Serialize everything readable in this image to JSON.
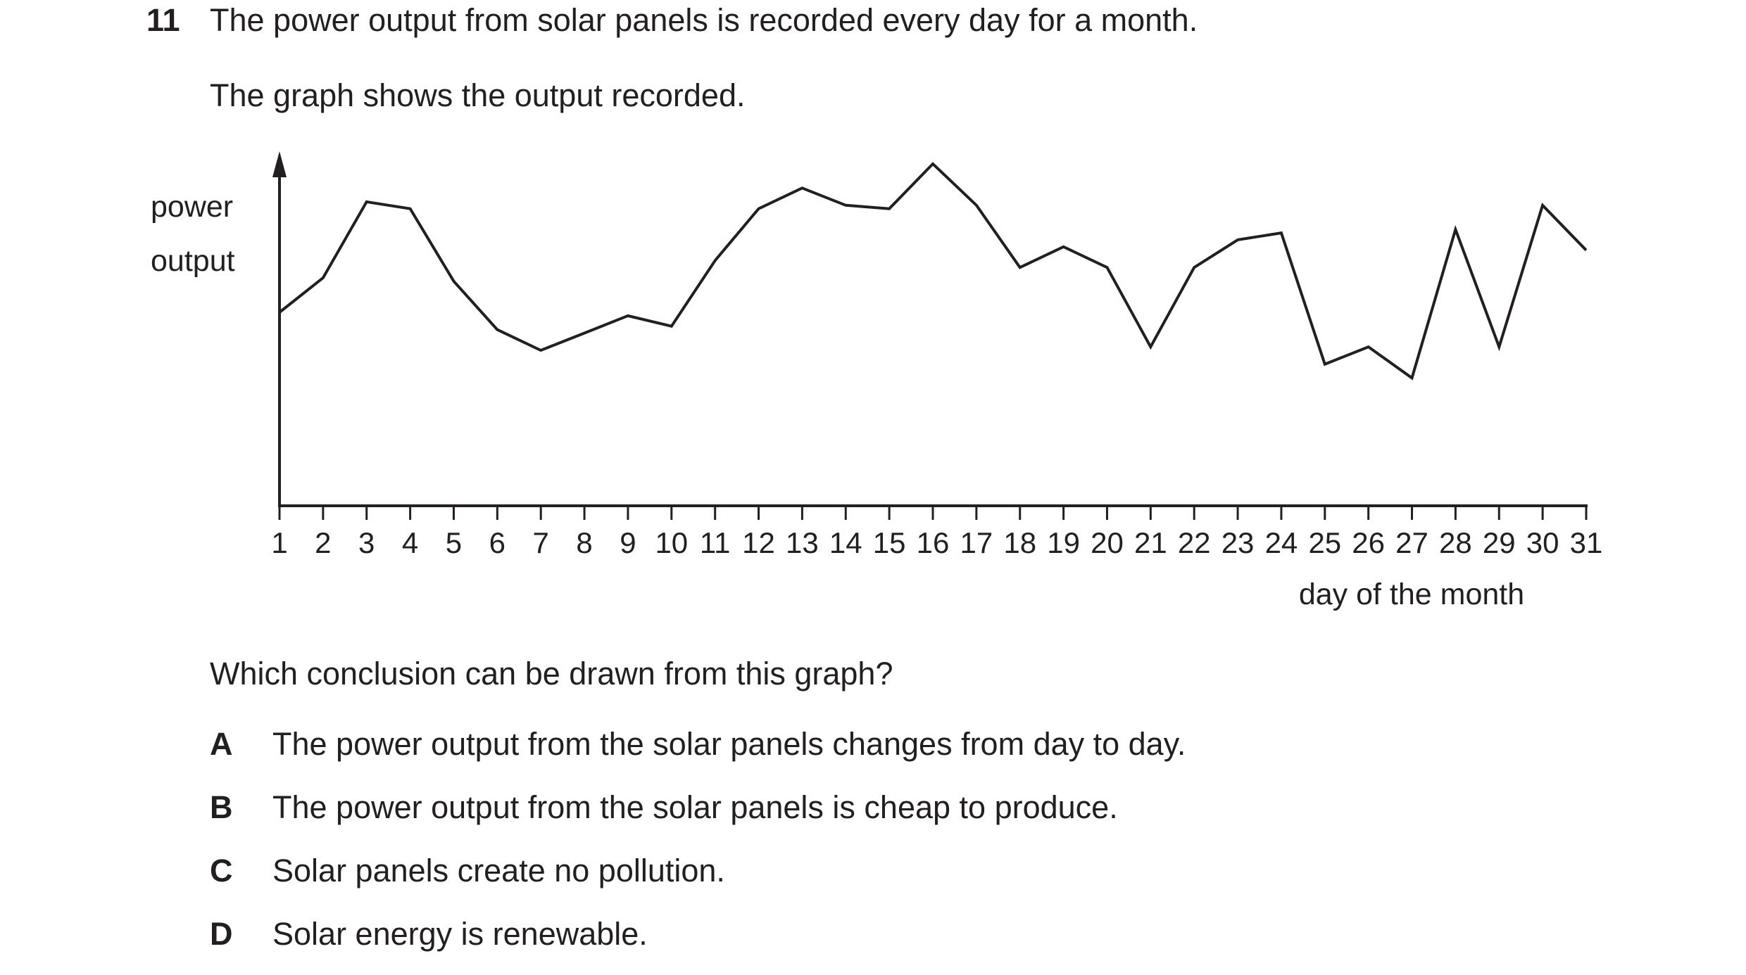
{
  "question": {
    "number": "11",
    "intro_line_1": "The power output from solar panels is recorded every day for a month.",
    "intro_line_2": "The graph shows the output recorded.",
    "prompt": "Which conclusion can be drawn from this graph?",
    "options": [
      {
        "letter": "A",
        "text": "The power output from the solar panels changes from day to day."
      },
      {
        "letter": "B",
        "text": "The power output from the solar panels is cheap to produce."
      },
      {
        "letter": "C",
        "text": "Solar panels create no pollution."
      },
      {
        "letter": "D",
        "text": "Solar energy is renewable."
      }
    ]
  },
  "chart_data": {
    "type": "line",
    "title": "",
    "ylabel_lines": [
      "power",
      "output"
    ],
    "xlabel": "day of the month",
    "y_axis_ticks": false,
    "grid": false,
    "ylim": [
      0,
      1
    ],
    "x": [
      1,
      2,
      3,
      4,
      5,
      6,
      7,
      8,
      9,
      10,
      11,
      12,
      13,
      14,
      15,
      16,
      17,
      18,
      19,
      20,
      21,
      22,
      23,
      24,
      25,
      26,
      27,
      28,
      29,
      30,
      31
    ],
    "series": [
      {
        "values": [
          0.56,
          0.66,
          0.88,
          0.86,
          0.65,
          0.51,
          0.45,
          0.5,
          0.55,
          0.52,
          0.71,
          0.86,
          0.92,
          0.87,
          0.86,
          0.99,
          0.87,
          0.69,
          0.75,
          0.69,
          0.46,
          0.69,
          0.77,
          0.79,
          0.41,
          0.46,
          0.37,
          0.8,
          0.46,
          0.87,
          0.74
        ]
      }
    ],
    "colors": {
      "ink": "#231f20"
    }
  }
}
